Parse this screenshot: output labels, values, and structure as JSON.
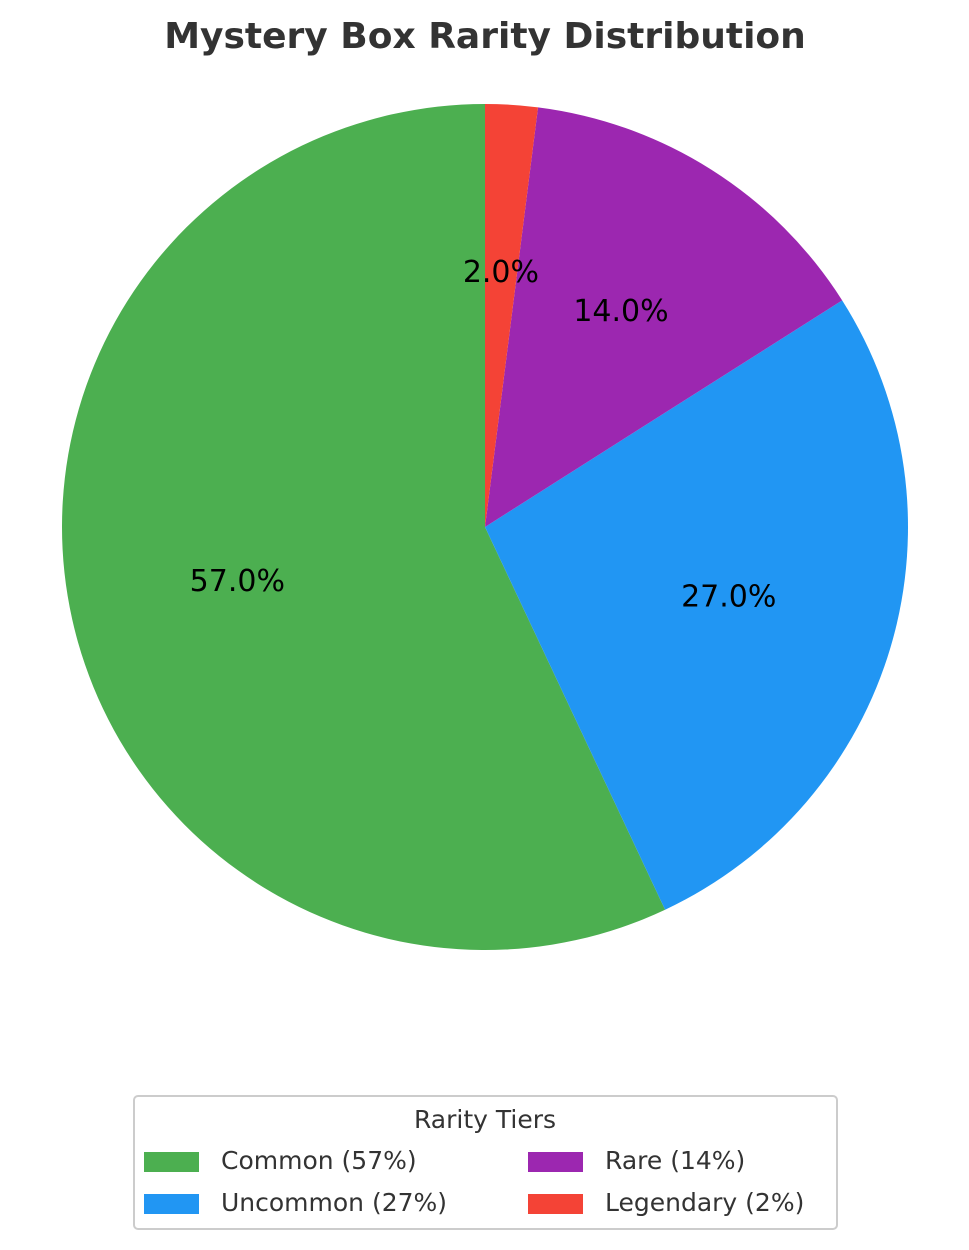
{
  "chart_data": {
    "type": "pie",
    "title": "Mystery Box Rarity Distribution",
    "categories": [
      "Common (57%)",
      "Uncommon (27%)",
      "Rare (14%)",
      "Legendary (2%)"
    ],
    "values": [
      57,
      27,
      14,
      2
    ],
    "value_labels": [
      "57.0%",
      "27.0%",
      "14.0%",
      "2.0%"
    ],
    "colors": [
      "#4caf50",
      "#2196f3",
      "#9c27b0",
      "#f44336"
    ],
    "legend_title": "Rarity Tiers",
    "legend": "bottom"
  }
}
